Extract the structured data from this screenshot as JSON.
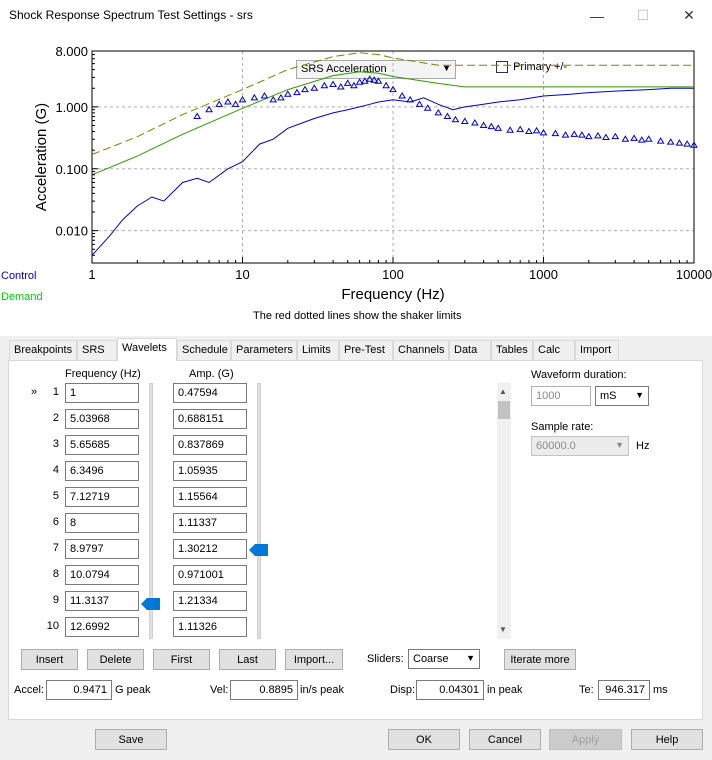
{
  "window": {
    "title": "Shock Response Spectrum Test Settings - srs",
    "minimize": "—",
    "maximize": "☐",
    "close": "✕"
  },
  "chart_controls": {
    "display_select": "SRS Acceleration",
    "primary_checkbox_label": "Primary +/-",
    "primary_checked": false,
    "legend_control": "Control",
    "legend_demand": "Demand",
    "shaker_note": "The red dotted lines show the shaker limits"
  },
  "colors": {
    "control": "#0000cc",
    "demand": "#00cc00",
    "limit": "#7a7a00",
    "accent": "#0078d7"
  },
  "chart_data": {
    "type": "line",
    "title": "",
    "xlabel": "Frequency (Hz)",
    "ylabel": "Acceleration (G)",
    "xscale": "log",
    "yscale": "log",
    "xlim": [
      1,
      10000
    ],
    "ylim": [
      0.003,
      8.0
    ],
    "x_ticks": [
      "1",
      "10",
      "100",
      "1000",
      "10000"
    ],
    "y_ticks": [
      "0.010",
      "0.100",
      "1.000",
      "8.000"
    ],
    "grid": true,
    "series": [
      {
        "name": "",
        "role": "upper-limit",
        "style": "dashed",
        "color": "#808000",
        "x": [
          1,
          2,
          4,
          10,
          20,
          40,
          60,
          80,
          100,
          200,
          300,
          1000,
          3000,
          10000
        ],
        "y": [
          0.17,
          0.33,
          0.75,
          1.9,
          4.0,
          6.5,
          7.5,
          7.0,
          6.2,
          4.7,
          4.7,
          4.7,
          4.7,
          4.7
        ]
      },
      {
        "name": "",
        "role": "demand",
        "style": "solid",
        "color": "#339900",
        "x": [
          1,
          2,
          4,
          10,
          20,
          40,
          60,
          80,
          100,
          200,
          300,
          1000,
          3000,
          10000
        ],
        "y": [
          0.08,
          0.16,
          0.36,
          0.95,
          1.9,
          3.2,
          3.7,
          3.5,
          3.1,
          2.4,
          2.1,
          2.1,
          2.1,
          2.1
        ]
      },
      {
        "name": "",
        "role": "control",
        "style": "solid",
        "color": "#0000cc",
        "x": [
          1,
          1.3,
          1.6,
          2,
          2.5,
          3,
          4,
          5,
          6,
          8,
          10,
          13,
          16,
          20,
          25,
          30,
          40,
          50,
          60,
          70,
          80,
          100,
          130,
          160,
          200,
          250,
          300,
          400,
          500,
          700,
          1000,
          1500,
          2000,
          3000,
          5000,
          7000,
          10000
        ],
        "y": [
          0.004,
          0.008,
          0.015,
          0.025,
          0.035,
          0.03,
          0.06,
          0.07,
          0.06,
          0.1,
          0.13,
          0.25,
          0.3,
          0.45,
          0.55,
          0.65,
          0.8,
          0.9,
          1.0,
          1.1,
          1.2,
          1.3,
          1.2,
          1.4,
          1.1,
          0.9,
          1.0,
          1.1,
          1.2,
          1.3,
          1.5,
          1.6,
          1.7,
          1.8,
          1.9,
          2.0,
          2.0
        ]
      },
      {
        "name": "",
        "role": "wavelet-amplitudes",
        "style": "triangles",
        "color": "#0000cc",
        "x": [
          5,
          6,
          7,
          8,
          9,
          10,
          12,
          14,
          16,
          18,
          20,
          23,
          26,
          30,
          35,
          40,
          45,
          50,
          55,
          60,
          65,
          70,
          75,
          80,
          90,
          100,
          115,
          130,
          150,
          170,
          200,
          230,
          260,
          300,
          350,
          400,
          450,
          500,
          600,
          700,
          800,
          900,
          1000,
          1200,
          1400,
          1600,
          1800,
          2000,
          2300,
          2600,
          3000,
          3500,
          4000,
          4500,
          5000,
          6000,
          7000,
          8000,
          9000,
          10000
        ],
        "y": [
          0.7,
          0.9,
          1.1,
          1.2,
          1.1,
          1.3,
          1.4,
          1.5,
          1.3,
          1.4,
          1.6,
          1.7,
          1.9,
          2.0,
          2.2,
          2.3,
          2.1,
          2.4,
          2.2,
          2.5,
          2.6,
          2.8,
          2.7,
          2.6,
          2.2,
          1.9,
          1.5,
          1.3,
          1.1,
          0.95,
          0.8,
          0.7,
          0.62,
          0.58,
          0.55,
          0.5,
          0.48,
          0.45,
          0.42,
          0.43,
          0.4,
          0.41,
          0.38,
          0.37,
          0.35,
          0.36,
          0.35,
          0.33,
          0.34,
          0.32,
          0.33,
          0.3,
          0.31,
          0.29,
          0.3,
          0.28,
          0.27,
          0.26,
          0.25,
          0.24
        ]
      }
    ]
  },
  "tabs": [
    {
      "label": "Breakpoints",
      "active": false
    },
    {
      "label": "SRS",
      "active": false
    },
    {
      "label": "Wavelets",
      "active": true
    },
    {
      "label": "Schedule",
      "active": false
    },
    {
      "label": "Parameters",
      "active": false
    },
    {
      "label": "Limits",
      "active": false
    },
    {
      "label": "Pre-Test",
      "active": false
    },
    {
      "label": "Channels",
      "active": false
    },
    {
      "label": "Data",
      "active": false
    },
    {
      "label": "Tables",
      "active": false
    },
    {
      "label": "Calc",
      "active": false
    },
    {
      "label": "Import",
      "active": false
    }
  ],
  "wavelets": {
    "col_frequency": "Frequency (Hz)",
    "col_amp": "Amp. (G)",
    "current_marker": "»",
    "rows": [
      {
        "n": "1",
        "freq": "1",
        "amp": "0.47594"
      },
      {
        "n": "2",
        "freq": "5.03968",
        "amp": "0.688151"
      },
      {
        "n": "3",
        "freq": "5.65685",
        "amp": "0.837869"
      },
      {
        "n": "4",
        "freq": "6.3496",
        "amp": "1.05935"
      },
      {
        "n": "5",
        "freq": "7.12719",
        "amp": "1.15564"
      },
      {
        "n": "6",
        "freq": "8",
        "amp": "1.11337"
      },
      {
        "n": "7",
        "freq": "8.9797",
        "amp": "1.30212"
      },
      {
        "n": "8",
        "freq": "10.0794",
        "amp": "0.971001"
      },
      {
        "n": "9",
        "freq": "11.3137",
        "amp": "1.21334"
      },
      {
        "n": "10",
        "freq": "12.6992",
        "amp": "1.11326"
      }
    ],
    "waveform_duration_label": "Waveform duration:",
    "waveform_duration_value": "1000",
    "waveform_duration_unit": "mS",
    "sample_rate_label": "Sample rate:",
    "sample_rate_value": "60000.0",
    "sample_rate_unit": "Hz",
    "buttons": {
      "insert": "Insert",
      "delete": "Delete",
      "first": "First",
      "last": "Last",
      "import": "Import...",
      "iterate": "Iterate more"
    },
    "sliders_label": "Sliders:",
    "sliders_value": "Coarse",
    "accel_label": "Accel:",
    "accel_value": "0.9471",
    "accel_unit": "G peak",
    "vel_label": "Vel:",
    "vel_value": "0.8895",
    "vel_unit": "in/s peak",
    "disp_label": "Disp:",
    "disp_value": "0.04301",
    "disp_unit": "in peak",
    "te_label": "Te:",
    "te_value": "946.317",
    "te_unit": "ms"
  },
  "footer": {
    "save": "Save",
    "ok": "OK",
    "cancel": "Cancel",
    "apply": "Apply",
    "help": "Help"
  }
}
